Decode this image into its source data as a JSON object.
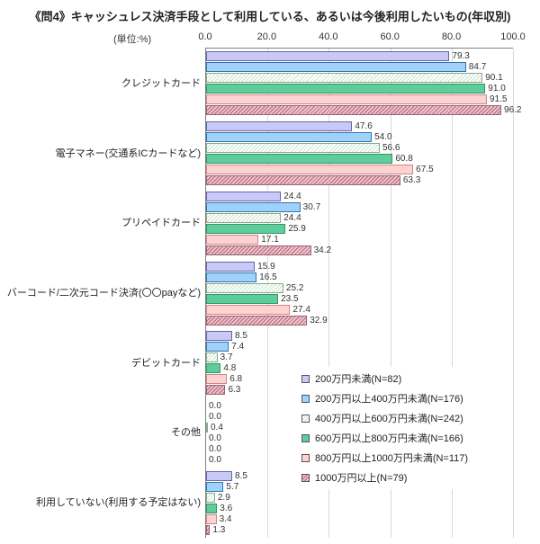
{
  "title": "《問4》キャッシュレス決済手段として利用している、あるいは今後利用したいもの(年収別)",
  "unit_label": "(単位:%)",
  "chart_data": {
    "type": "bar",
    "orientation": "horizontal",
    "title": "《問4》キャッシュレス決済手段として利用している、あるいは今後利用したいもの(年収別)",
    "xlabel": "(単位:%)",
    "xlim": [
      0,
      100
    ],
    "xticks": [
      0.0,
      20.0,
      40.0,
      60.0,
      80.0,
      100.0
    ],
    "grid": true,
    "legend_position": "overlay-lower-right",
    "categories": [
      "クレジットカード",
      "電子マネー(交通系ICカードなど)",
      "プリペイドカード",
      "バーコード/二次元コード決済(〇〇payなど)",
      "デビットカード",
      "その他",
      "利用していない(利用する予定はない)"
    ],
    "series": [
      {
        "name": "200万円未満(N=82)",
        "fill": "#c9c9f7",
        "border": "#6666aa",
        "pattern": false,
        "pattern_color": "",
        "values": [
          79.3,
          47.6,
          24.4,
          15.9,
          8.5,
          0.0,
          8.5
        ]
      },
      {
        "name": "200万円以上400万円未満(N=176)",
        "fill": "#9fd1fb",
        "border": "#3377aa",
        "pattern": false,
        "pattern_color": "",
        "values": [
          84.7,
          54.0,
          30.7,
          16.5,
          7.4,
          0.0,
          5.7
        ]
      },
      {
        "name": "400万円以上600万円未満(N=242)",
        "fill": "#ffffff",
        "border": "#88aa88",
        "pattern": true,
        "pattern_color": "#c9e4cf",
        "values": [
          90.1,
          56.6,
          24.4,
          25.2,
          3.7,
          0.4,
          2.9
        ]
      },
      {
        "name": "600万円以上800万円未満(N=166)",
        "fill": "#5ecc9b",
        "border": "#2f9966",
        "pattern": false,
        "pattern_color": "",
        "values": [
          91.0,
          60.8,
          25.9,
          23.5,
          4.8,
          0.0,
          3.6
        ]
      },
      {
        "name": "800万円以上1000万円未満(N=117)",
        "fill": "#ffd2d2",
        "border": "#cc8888",
        "pattern": false,
        "pattern_color": "",
        "values": [
          91.5,
          67.5,
          17.1,
          27.4,
          6.8,
          0.0,
          3.4
        ]
      },
      {
        "name": "1000万円以上(N=79)",
        "fill": "#f0c2ca",
        "border": "#996677",
        "pattern": true,
        "pattern_color": "#b06a7e",
        "values": [
          96.2,
          63.3,
          34.2,
          32.9,
          6.3,
          0.0,
          1.3
        ]
      }
    ]
  }
}
